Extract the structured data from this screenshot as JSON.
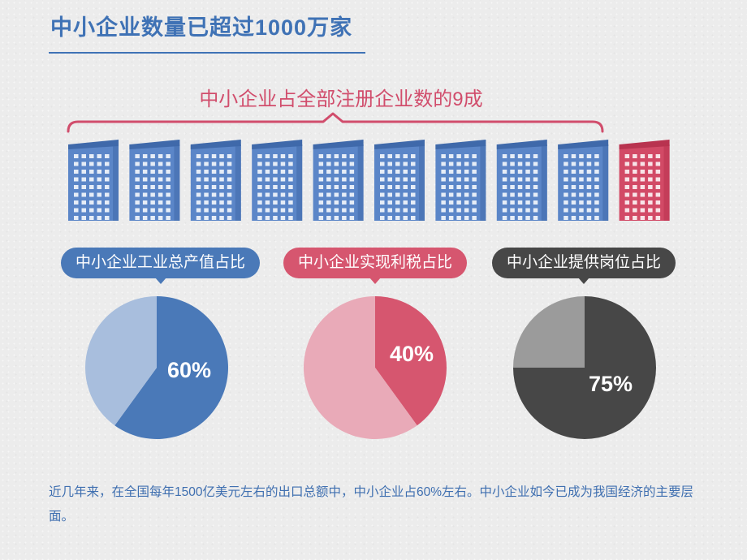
{
  "page": {
    "title": "中小企业数量已超过1000万家",
    "bracket_label": "中小企业占全部注册企业数的9成",
    "footer": "近几年来，在全国每年1500亿美元左右的出口总额中，中小企业占60%左右。中小企业如今已成为我国经济的主要层面。"
  },
  "colors": {
    "title_blue": "#3f72b5",
    "bracket_pink": "#d14d6c",
    "building_blue": "#5b86c8",
    "building_red": "#d24a66",
    "pie1_main": "#4a79b8",
    "pie1_rest": "#a8bedd",
    "pie2_main": "#d6566f",
    "pie2_rest": "#e9aab8",
    "pie3_main": "#474747",
    "pie3_rest": "#9b9b9b"
  },
  "buildings": {
    "count": 10,
    "highlighted_index": 9,
    "highlight_meaning": "1 of 10 red"
  },
  "chart_data": [
    {
      "type": "pie",
      "title": "中小企业工业总产值占比",
      "slices": [
        {
          "label": "60%",
          "value": 60
        },
        {
          "label": "",
          "value": 40
        }
      ]
    },
    {
      "type": "pie",
      "title": "中小企业实现利税占比",
      "slices": [
        {
          "label": "40%",
          "value": 40
        },
        {
          "label": "",
          "value": 60
        }
      ]
    },
    {
      "type": "pie",
      "title": "中小企业提供岗位占比",
      "slices": [
        {
          "label": "75%",
          "value": 75
        },
        {
          "label": "",
          "value": 25
        }
      ]
    }
  ]
}
